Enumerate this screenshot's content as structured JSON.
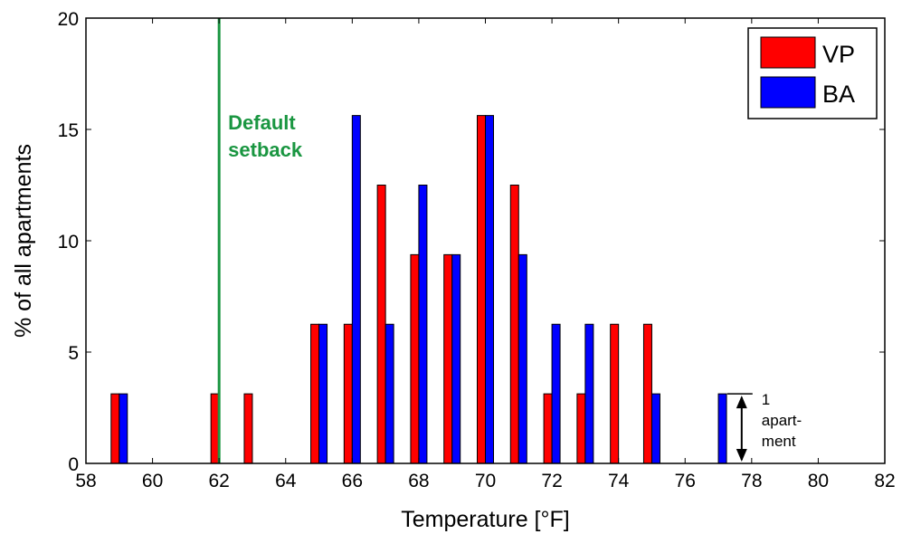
{
  "chart_data": {
    "type": "bar",
    "xlabel": "Temperature [°F]",
    "ylabel": "% of all apartments",
    "xlim": [
      58,
      82
    ],
    "ylim": [
      0,
      20
    ],
    "x_ticks": [
      "58",
      "60",
      "62",
      "64",
      "66",
      "68",
      "70",
      "72",
      "74",
      "76",
      "78",
      "80",
      "82"
    ],
    "y_ticks": [
      "0",
      "5",
      "10",
      "15",
      "20"
    ],
    "grid": false,
    "legend_position": "top-right",
    "series": [
      {
        "name": "VP",
        "color": "#ff0000",
        "points": [
          {
            "x": 59,
            "y": 3.125
          },
          {
            "x": 62,
            "y": 3.125
          },
          {
            "x": 63,
            "y": 3.125
          },
          {
            "x": 65,
            "y": 6.25
          },
          {
            "x": 66,
            "y": 6.25
          },
          {
            "x": 67,
            "y": 12.5
          },
          {
            "x": 68,
            "y": 9.375
          },
          {
            "x": 69,
            "y": 9.375
          },
          {
            "x": 70,
            "y": 15.625
          },
          {
            "x": 71,
            "y": 12.5
          },
          {
            "x": 72,
            "y": 3.125
          },
          {
            "x": 73,
            "y": 3.125
          },
          {
            "x": 74,
            "y": 6.25
          },
          {
            "x": 75,
            "y": 6.25
          }
        ]
      },
      {
        "name": "BA",
        "color": "#0000ff",
        "points": [
          {
            "x": 59,
            "y": 3.125
          },
          {
            "x": 65,
            "y": 6.25
          },
          {
            "x": 66,
            "y": 15.625
          },
          {
            "x": 67,
            "y": 6.25
          },
          {
            "x": 68,
            "y": 12.5
          },
          {
            "x": 69,
            "y": 9.375
          },
          {
            "x": 70,
            "y": 15.625
          },
          {
            "x": 71,
            "y": 9.375
          },
          {
            "x": 72,
            "y": 6.25
          },
          {
            "x": 73,
            "y": 6.25
          },
          {
            "x": 75,
            "y": 3.125
          },
          {
            "x": 77,
            "y": 3.125
          }
        ]
      }
    ],
    "reference_line": {
      "x": 62,
      "color": "#1a9641",
      "label_lines": [
        "Default",
        "setback"
      ]
    },
    "annotation": {
      "x": 77.7,
      "y_range": [
        0,
        3.125
      ],
      "label_lines": [
        "1",
        "apart-",
        "ment"
      ]
    }
  }
}
